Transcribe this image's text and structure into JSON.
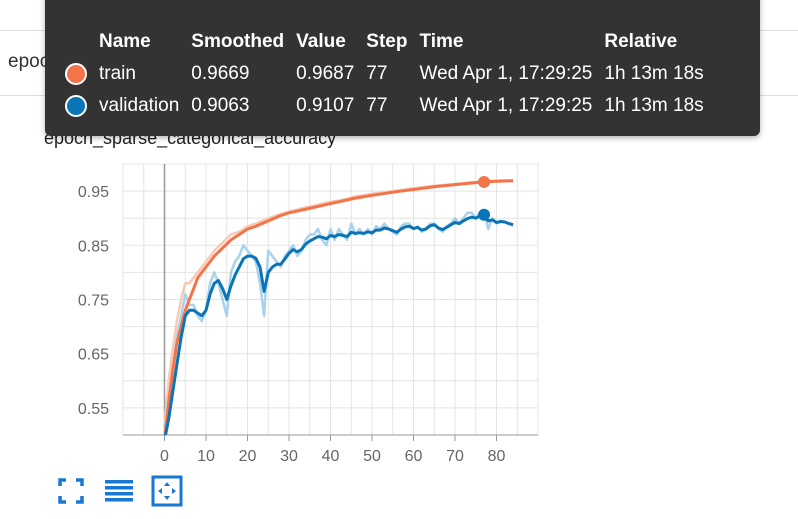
{
  "card": {
    "header_title": "epoch_sparse_categorical_accuracy"
  },
  "chart_title": "epoch_sparse_categorical_accuracy",
  "tooltip": {
    "headers": {
      "name": "Name",
      "smoothed": "Smoothed",
      "value": "Value",
      "step": "Step",
      "time": "Time",
      "relative": "Relative"
    },
    "rows": [
      {
        "name": "train",
        "color": "#f4744a",
        "smoothed": "0.9669",
        "value": "0.9687",
        "step": "77",
        "time": "Wed Apr 1, 17:29:25",
        "relative": "1h 13m 18s"
      },
      {
        "name": "validation",
        "color": "#0a74b8",
        "smoothed": "0.9063",
        "value": "0.9107",
        "step": "77",
        "time": "Wed Apr 1, 17:29:25",
        "relative": "1h 13m 18s"
      }
    ]
  },
  "buttons": {
    "fullscreen": "fullscreen-icon",
    "toggle_log": "list-icon",
    "fit_domain": "fit-domain-icon"
  },
  "chart_data": {
    "type": "line",
    "xlim": [
      -10,
      90
    ],
    "ylim": [
      0.5,
      1.0
    ],
    "x_ticks": [
      0,
      10,
      20,
      30,
      40,
      50,
      60,
      70,
      80
    ],
    "y_ticks": [
      0.55,
      0.65,
      0.75,
      0.85,
      0.95
    ],
    "grid": true,
    "highlight_step": 77,
    "series": [
      {
        "name": "train",
        "color": "#f4744a",
        "x": [
          0,
          1,
          2,
          3,
          4,
          5,
          6,
          7,
          8,
          9,
          10,
          12,
          14,
          16,
          18,
          20,
          22,
          25,
          28,
          30,
          33,
          36,
          40,
          43,
          46,
          50,
          55,
          60,
          65,
          70,
          74,
          77,
          80,
          84
        ],
        "smoothed": [
          0.49,
          0.56,
          0.62,
          0.67,
          0.7,
          0.73,
          0.75,
          0.77,
          0.79,
          0.8,
          0.81,
          0.83,
          0.845,
          0.86,
          0.87,
          0.88,
          0.885,
          0.895,
          0.905,
          0.91,
          0.915,
          0.92,
          0.927,
          0.932,
          0.937,
          0.942,
          0.948,
          0.953,
          0.958,
          0.962,
          0.965,
          0.9669,
          0.968,
          0.969
        ],
        "raw": [
          0.52,
          0.6,
          0.66,
          0.71,
          0.75,
          0.78,
          0.78,
          0.79,
          0.8,
          0.81,
          0.82,
          0.84,
          0.855,
          0.87,
          0.875,
          0.885,
          0.89,
          0.9,
          0.908,
          0.912,
          0.918,
          0.923,
          0.93,
          0.934,
          0.94,
          0.945,
          0.95,
          0.955,
          0.96,
          0.963,
          0.966,
          0.9687,
          0.969,
          0.97
        ]
      },
      {
        "name": "validation",
        "color": "#0a74b8",
        "x": [
          0,
          1,
          2,
          3,
          4,
          5,
          6,
          7,
          8,
          9,
          10,
          11,
          12,
          13,
          14,
          15,
          16,
          17,
          18,
          19,
          20,
          21,
          22,
          23,
          24,
          25,
          26,
          27,
          28,
          29,
          30,
          31,
          32,
          33,
          34,
          35,
          36,
          37,
          38,
          39,
          40,
          41,
          42,
          43,
          44,
          45,
          46,
          47,
          48,
          49,
          50,
          51,
          52,
          53,
          54,
          55,
          56,
          57,
          58,
          59,
          60,
          61,
          62,
          63,
          64,
          65,
          66,
          67,
          68,
          69,
          70,
          71,
          72,
          73,
          74,
          75,
          76,
          77,
          78,
          79,
          80,
          81,
          82,
          83,
          84
        ],
        "smoothed": [
          0.49,
          0.53,
          0.58,
          0.63,
          0.68,
          0.72,
          0.73,
          0.73,
          0.725,
          0.72,
          0.73,
          0.76,
          0.78,
          0.785,
          0.77,
          0.75,
          0.775,
          0.795,
          0.81,
          0.825,
          0.83,
          0.83,
          0.826,
          0.81,
          0.765,
          0.8,
          0.81,
          0.815,
          0.815,
          0.825,
          0.835,
          0.842,
          0.838,
          0.842,
          0.852,
          0.858,
          0.862,
          0.866,
          0.865,
          0.862,
          0.868,
          0.866,
          0.87,
          0.868,
          0.866,
          0.874,
          0.872,
          0.873,
          0.872,
          0.875,
          0.873,
          0.878,
          0.878,
          0.882,
          0.88,
          0.877,
          0.874,
          0.88,
          0.884,
          0.885,
          0.881,
          0.883,
          0.878,
          0.88,
          0.886,
          0.888,
          0.882,
          0.879,
          0.883,
          0.888,
          0.892,
          0.89,
          0.895,
          0.899,
          0.902,
          0.9,
          0.904,
          0.9063,
          0.895,
          0.897,
          0.892,
          0.894,
          0.893,
          0.89,
          0.888
        ],
        "raw": [
          0.5,
          0.57,
          0.62,
          0.68,
          0.72,
          0.76,
          0.74,
          0.74,
          0.72,
          0.71,
          0.73,
          0.78,
          0.8,
          0.78,
          0.75,
          0.72,
          0.8,
          0.82,
          0.83,
          0.85,
          0.84,
          0.83,
          0.82,
          0.78,
          0.72,
          0.84,
          0.83,
          0.82,
          0.81,
          0.83,
          0.84,
          0.85,
          0.83,
          0.84,
          0.86,
          0.87,
          0.87,
          0.88,
          0.86,
          0.85,
          0.88,
          0.86,
          0.88,
          0.87,
          0.86,
          0.89,
          0.87,
          0.88,
          0.87,
          0.88,
          0.87,
          0.885,
          0.88,
          0.89,
          0.88,
          0.875,
          0.87,
          0.885,
          0.89,
          0.89,
          0.88,
          0.885,
          0.875,
          0.88,
          0.89,
          0.89,
          0.88,
          0.875,
          0.885,
          0.89,
          0.9,
          0.89,
          0.9,
          0.91,
          0.91,
          0.9,
          0.91,
          0.9107,
          0.88,
          0.9,
          0.89,
          0.895,
          0.893,
          0.89,
          0.886
        ]
      }
    ]
  }
}
